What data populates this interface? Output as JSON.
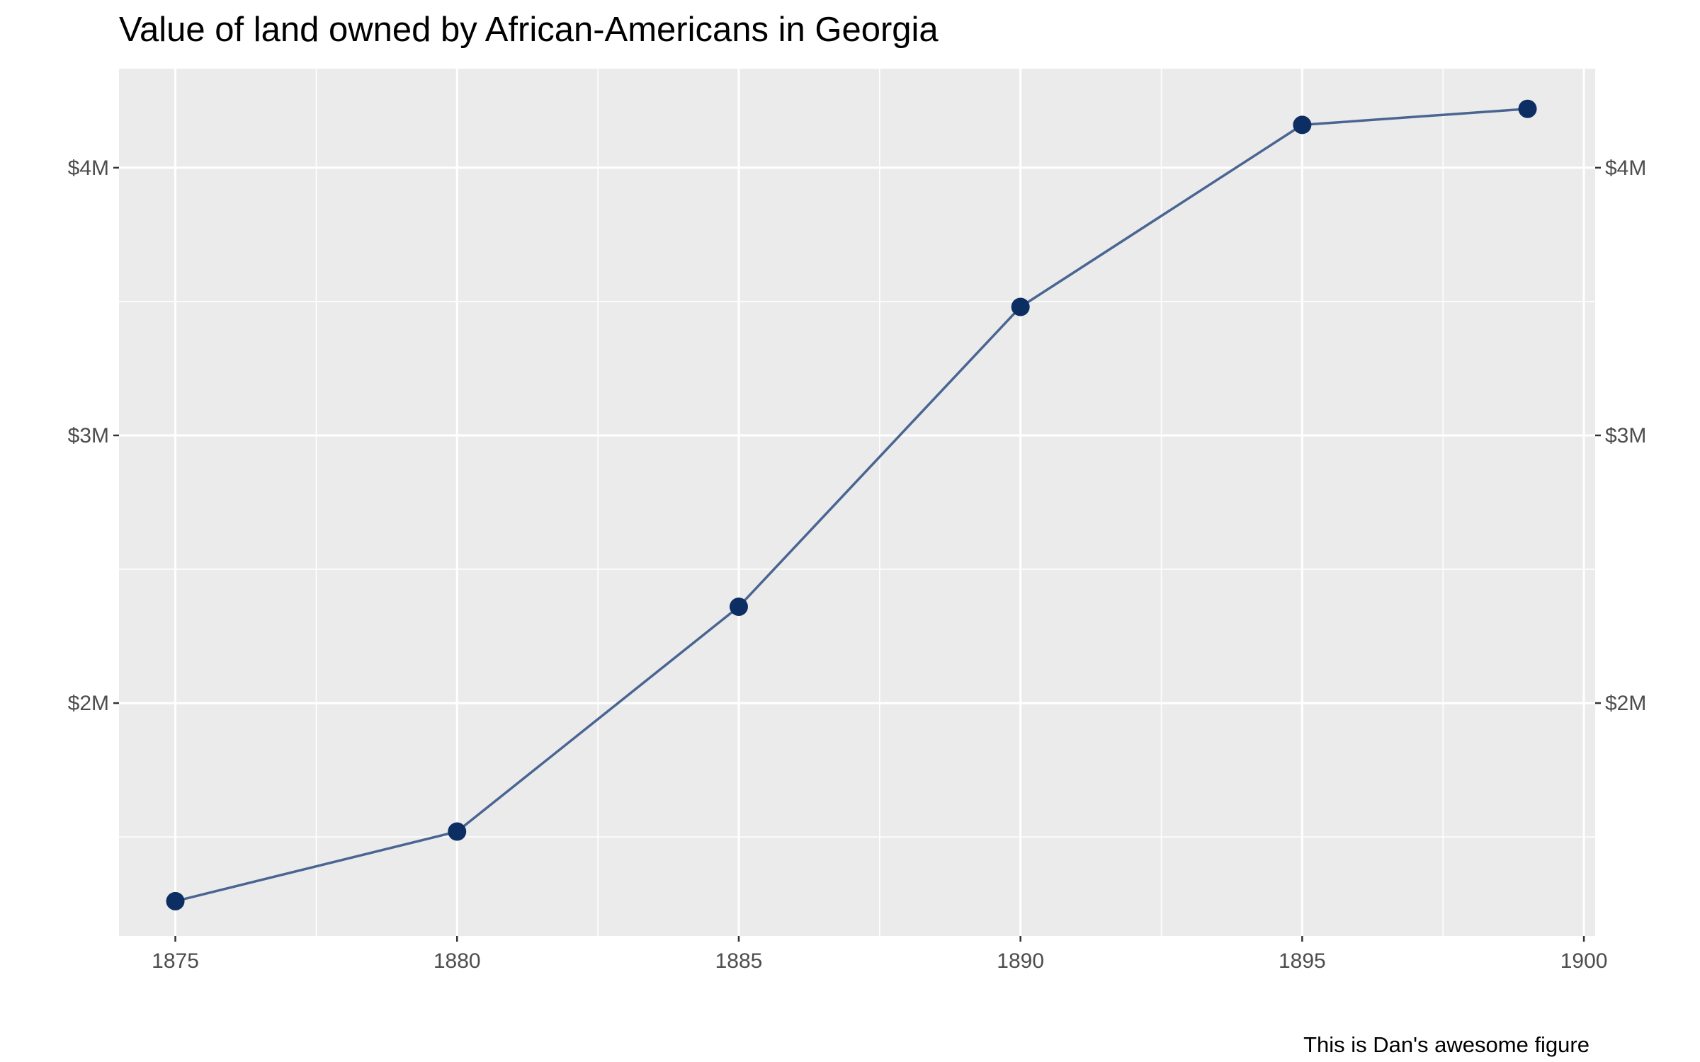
{
  "chart_data": {
    "type": "line",
    "title": "Value of land owned by African-Americans in Georgia",
    "caption": "This is Dan's awesome figure",
    "xlabel": "",
    "ylabel": "",
    "x": [
      1875,
      1880,
      1885,
      1890,
      1895,
      1899
    ],
    "series": [
      {
        "values": [
          1260000,
          1520000,
          2360000,
          3480000,
          4160000,
          4220000
        ]
      }
    ],
    "xlim": [
      1874,
      1900.2
    ],
    "ylim": [
      1130000,
      4370000
    ],
    "x_ticks": [
      1875,
      1880,
      1885,
      1890,
      1895,
      1900
    ],
    "x_tick_labels": [
      "1875",
      "1880",
      "1885",
      "1890",
      "1895",
      "1900"
    ],
    "y_ticks": [
      2000000,
      3000000,
      4000000
    ],
    "y_tick_labels": [
      "$2M",
      "$3M",
      "$4M"
    ],
    "y_axis_side": "both",
    "grid": true,
    "legend": "none",
    "colors": {
      "line": "#4a6592",
      "point": "#0d2e63",
      "panel": "#ebebeb",
      "grid": "#ffffff"
    }
  }
}
